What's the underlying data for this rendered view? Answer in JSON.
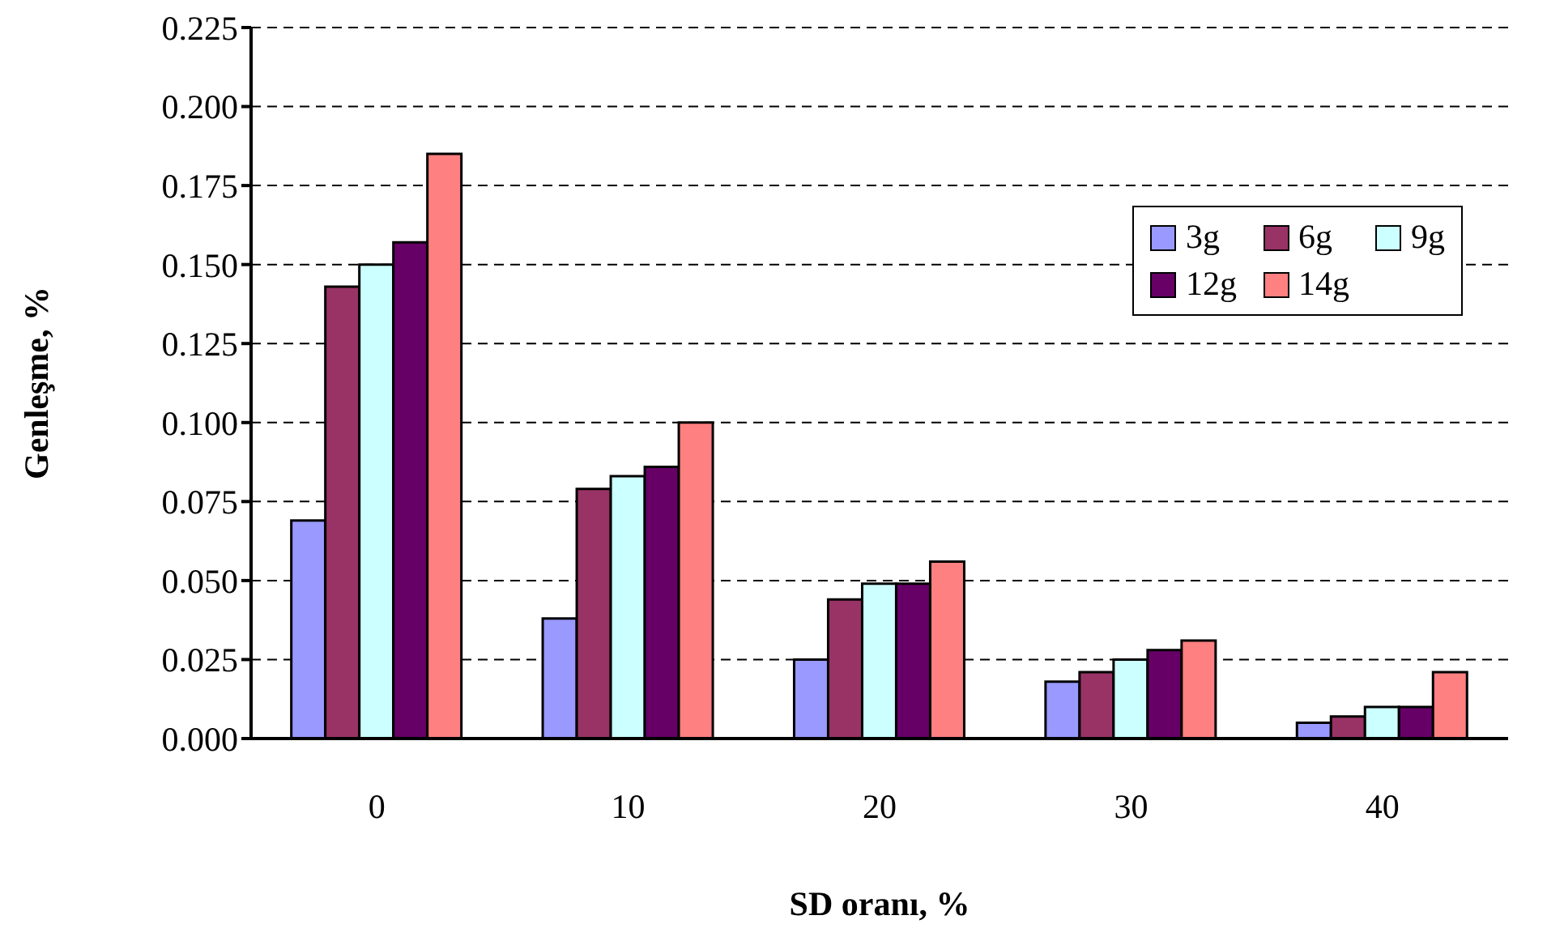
{
  "chart_data": {
    "type": "bar",
    "xlabel": "SD oranı, %",
    "ylabel": "Genleşme, %",
    "categories": [
      "0",
      "10",
      "20",
      "30",
      "40"
    ],
    "series": [
      {
        "name": "3g",
        "color": "#9999ff",
        "values": [
          0.069,
          0.038,
          0.025,
          0.018,
          0.005
        ]
      },
      {
        "name": "6g",
        "color": "#993366",
        "values": [
          0.143,
          0.079,
          0.044,
          0.021,
          0.007
        ]
      },
      {
        "name": "9g",
        "color": "#ccffff",
        "values": [
          0.15,
          0.083,
          0.049,
          0.025,
          0.01
        ]
      },
      {
        "name": "12g",
        "color": "#660066",
        "values": [
          0.157,
          0.086,
          0.049,
          0.028,
          0.01
        ]
      },
      {
        "name": "14g",
        "color": "#ff8080",
        "values": [
          0.185,
          0.1,
          0.056,
          0.031,
          0.021
        ]
      }
    ],
    "ylim": [
      0,
      0.225
    ],
    "yticks": [
      {
        "value": 0,
        "label": "0.000"
      },
      {
        "value": 0.025,
        "label": "0.025"
      },
      {
        "value": 0.05,
        "label": "0.050"
      },
      {
        "value": 0.075,
        "label": "0.075"
      },
      {
        "value": 0.1,
        "label": "0.100"
      },
      {
        "value": 0.125,
        "label": "0.125"
      },
      {
        "value": 0.15,
        "label": "0.150"
      },
      {
        "value": 0.175,
        "label": "0.175"
      },
      {
        "value": 0.2,
        "label": "0.200"
      },
      {
        "value": 0.225,
        "label": "0.225"
      }
    ],
    "grid": "y",
    "line_style": "dashed",
    "legend": "top right"
  }
}
